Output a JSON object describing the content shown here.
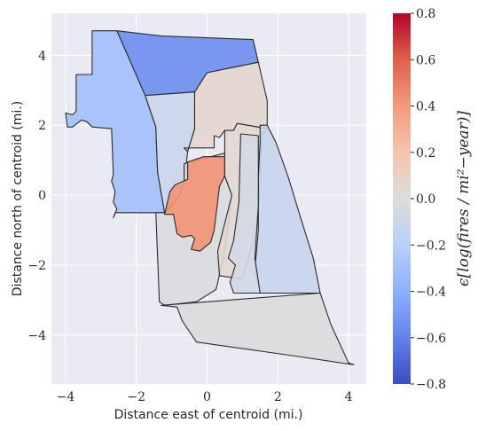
{
  "chart_data": {
    "type": "choropleth",
    "title": "",
    "xlabel": "Distance east of centroid (mi.)",
    "ylabel": "Distance north of centroid (mi.)",
    "xlim": [
      -4.4,
      4.5
    ],
    "ylim": [
      -5.4,
      5.2
    ],
    "xticks": [
      -4,
      -2,
      0,
      2,
      4
    ],
    "yticks": [
      -4,
      -2,
      0,
      2,
      4
    ],
    "xtick_labels": [
      "−4",
      "−2",
      "0",
      "2",
      "4"
    ],
    "ytick_labels": [
      "−4",
      "−2",
      "0",
      "2",
      "4"
    ],
    "grid": true,
    "background": "#eaeaf2",
    "colormap": "coolwarm",
    "colorbar": {
      "label": "ϵ[log(fires / mi²−year)]",
      "vmin": -0.8,
      "vmax": 0.8,
      "ticks": [
        -0.8,
        -0.6,
        -0.4,
        -0.2,
        0.0,
        0.2,
        0.4,
        0.6,
        0.8
      ],
      "tick_labels": [
        "−0.8",
        "−0.6",
        "−0.4",
        "−0.2",
        "0.0",
        "0.2",
        "0.4",
        "0.6",
        "0.8"
      ]
    },
    "regions": [
      {
        "value": -0.55,
        "points": [
          [
            -2.55,
            4.7
          ],
          [
            -1.3,
            4.55
          ],
          [
            1.3,
            4.45
          ],
          [
            1.45,
            3.8
          ],
          [
            0,
            3.5
          ],
          [
            -0.35,
            2.95
          ],
          [
            -1.75,
            2.85
          ]
        ]
      },
      {
        "value": -0.3,
        "points": [
          [
            -3.25,
            4.7
          ],
          [
            -2.55,
            4.7
          ],
          [
            -1.75,
            2.85
          ],
          [
            -1.45,
            1.95
          ],
          [
            -1.4,
            0.65
          ],
          [
            -1.2,
            -0.5
          ],
          [
            -2.6,
            -0.5
          ],
          [
            -2.65,
            -0.65
          ],
          [
            -2.55,
            -0.4
          ],
          [
            -2.65,
            -0.2
          ],
          [
            -2.6,
            0.1
          ],
          [
            -2.7,
            0.4
          ],
          [
            -2.65,
            0.6
          ],
          [
            -2.7,
            1.9
          ],
          [
            -3.25,
            1.95
          ],
          [
            -3.4,
            2.1
          ],
          [
            -3.55,
            2.15
          ],
          [
            -3.8,
            1.95
          ],
          [
            -3.95,
            1.95
          ],
          [
            -4.0,
            2.35
          ],
          [
            -3.8,
            2.3
          ],
          [
            -3.7,
            2.4
          ],
          [
            -3.7,
            3.45
          ],
          [
            -3.25,
            3.45
          ]
        ]
      },
      {
        "value": -0.1,
        "points": [
          [
            -1.75,
            2.85
          ],
          [
            -0.35,
            2.95
          ],
          [
            -0.35,
            1.9
          ],
          [
            -0.55,
            1.25
          ],
          [
            -0.65,
            0.3
          ],
          [
            -0.8,
            -0.05
          ],
          [
            -1.2,
            -0.5
          ],
          [
            -1.4,
            0.65
          ],
          [
            -1.45,
            1.95
          ]
        ]
      },
      {
        "value": 0.06,
        "points": [
          [
            -0.35,
            2.95
          ],
          [
            0,
            3.5
          ],
          [
            1.45,
            3.8
          ],
          [
            1.7,
            2.7
          ],
          [
            1.7,
            1.9
          ],
          [
            0.85,
            2.05
          ],
          [
            0.75,
            1.85
          ],
          [
            0.5,
            1.85
          ],
          [
            0.35,
            1.65
          ],
          [
            0.2,
            1.7
          ],
          [
            0.2,
            1.35
          ],
          [
            -0.65,
            1.35
          ],
          [
            -0.55,
            1.25
          ],
          [
            -0.35,
            1.9
          ]
        ]
      },
      {
        "value": -0.02,
        "points": [
          [
            -1.2,
            -0.5
          ],
          [
            -0.8,
            -0.05
          ],
          [
            -0.65,
            0.3
          ],
          [
            -0.65,
            0.9
          ],
          [
            0.5,
            1.2
          ],
          [
            0.5,
            0.55
          ],
          [
            0.7,
            0.0
          ],
          [
            0.5,
            -1.6
          ],
          [
            0.3,
            -2.5
          ],
          [
            0.25,
            -2.7
          ],
          [
            -0.3,
            -3.05
          ],
          [
            -1.2,
            -3.15
          ],
          [
            -1.35,
            -3.05
          ],
          [
            -1.45,
            -0.5
          ]
        ]
      },
      {
        "value": 0.42,
        "points": [
          [
            -1.2,
            -0.55
          ],
          [
            -1.05,
            0.1
          ],
          [
            -0.9,
            0.3
          ],
          [
            -0.55,
            0.45
          ],
          [
            -0.55,
            0.95
          ],
          [
            -0.1,
            1.1
          ],
          [
            0.5,
            1.1
          ],
          [
            0.5,
            0.55
          ],
          [
            0.35,
            0.25
          ],
          [
            0.2,
            -1.0
          ],
          [
            0.1,
            -1.35
          ],
          [
            -0.2,
            -1.6
          ],
          [
            -0.45,
            -1.55
          ],
          [
            -0.35,
            -1.25
          ],
          [
            -0.45,
            -1.15
          ],
          [
            -0.7,
            -1.2
          ],
          [
            -0.85,
            -1.1
          ],
          [
            -0.95,
            -0.55
          ]
        ]
      },
      {
        "value": 0.04,
        "points": [
          [
            0.5,
            1.85
          ],
          [
            0.75,
            1.85
          ],
          [
            0.85,
            2.05
          ],
          [
            1.7,
            1.9
          ],
          [
            1.55,
            1.7
          ],
          [
            1.5,
            0.3
          ],
          [
            1.4,
            -1.0
          ],
          [
            1.0,
            -2.4
          ],
          [
            0.35,
            -2.3
          ],
          [
            0.3,
            -1.6
          ],
          [
            0.7,
            0.0
          ],
          [
            0.5,
            0.55
          ]
        ]
      },
      {
        "value": -0.12,
        "points": [
          [
            1.5,
            2.0
          ],
          [
            1.7,
            2.0
          ],
          [
            1.95,
            1.5
          ],
          [
            2.3,
            0.5
          ],
          [
            2.6,
            -0.5
          ],
          [
            3.0,
            -1.8
          ],
          [
            3.2,
            -2.8
          ],
          [
            1.5,
            -2.8
          ],
          [
            1.35,
            -2.1
          ],
          [
            1.45,
            -1.0
          ],
          [
            1.45,
            0.5
          ],
          [
            1.5,
            1.5
          ]
        ]
      },
      {
        "value": -0.06,
        "points": [
          [
            0.95,
            1.75
          ],
          [
            1.45,
            1.7
          ],
          [
            1.45,
            -0.3
          ],
          [
            1.35,
            -1.8
          ],
          [
            1.5,
            -2.8
          ],
          [
            0.75,
            -2.8
          ],
          [
            0.65,
            -2.5
          ],
          [
            0.8,
            -2.0
          ],
          [
            0.6,
            -1.8
          ],
          [
            0.75,
            -1.3
          ],
          [
            0.9,
            -0.2
          ]
        ]
      },
      {
        "value": -0.01,
        "points": [
          [
            -1.3,
            -3.15
          ],
          [
            3.2,
            -2.8
          ],
          [
            3.5,
            -3.7
          ],
          [
            4.0,
            -4.8
          ],
          [
            4.15,
            -4.85
          ],
          [
            2.5,
            -4.6
          ],
          [
            -0.3,
            -4.2
          ],
          [
            -0.7,
            -3.6
          ],
          [
            -0.85,
            -3.2
          ]
        ]
      }
    ]
  }
}
